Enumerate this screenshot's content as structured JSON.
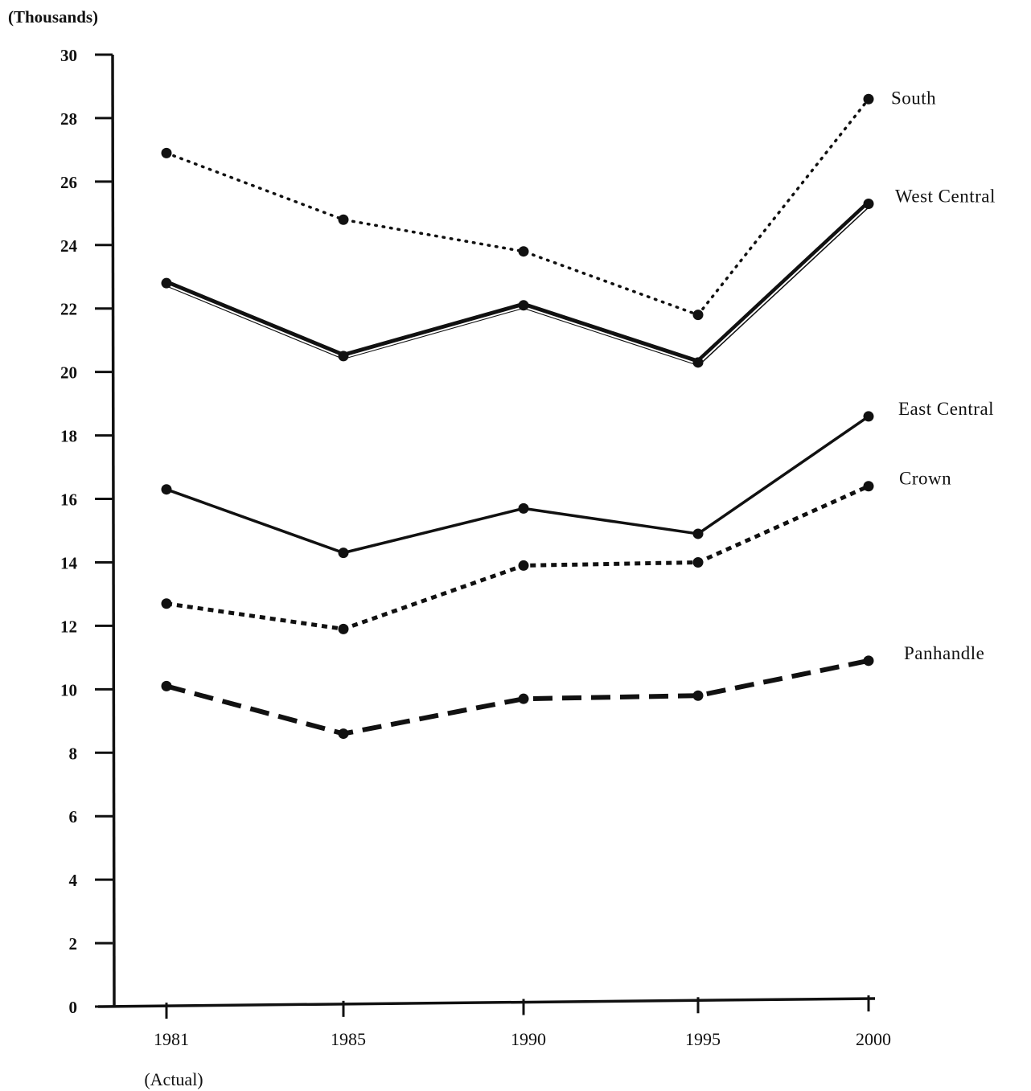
{
  "chart_data": {
    "type": "line",
    "unit_label": "(Thousands)",
    "x": [
      "1981",
      "1985",
      "1990",
      "1995",
      "2000"
    ],
    "x_sublabel": "(Actual)",
    "ylim": [
      0,
      30
    ],
    "y_ticks": [
      0,
      2,
      4,
      6,
      8,
      10,
      12,
      14,
      16,
      18,
      20,
      22,
      24,
      26,
      28,
      30
    ],
    "grid": false,
    "legend": "labels at right end of each line",
    "series": [
      {
        "name": "South",
        "style": "dotted",
        "values": [
          26.9,
          24.8,
          23.8,
          21.8,
          28.6
        ]
      },
      {
        "name": "West Central",
        "style": "double",
        "values": [
          22.8,
          20.5,
          22.1,
          20.3,
          25.3
        ]
      },
      {
        "name": "East Central",
        "style": "solid",
        "values": [
          16.3,
          14.3,
          15.7,
          14.9,
          18.6
        ]
      },
      {
        "name": "Crown",
        "style": "short-dash",
        "values": [
          12.7,
          11.9,
          13.9,
          14.0,
          16.4
        ]
      },
      {
        "name": "Panhandle",
        "style": "long-dash",
        "values": [
          10.1,
          8.6,
          9.7,
          9.8,
          10.9
        ]
      }
    ]
  }
}
